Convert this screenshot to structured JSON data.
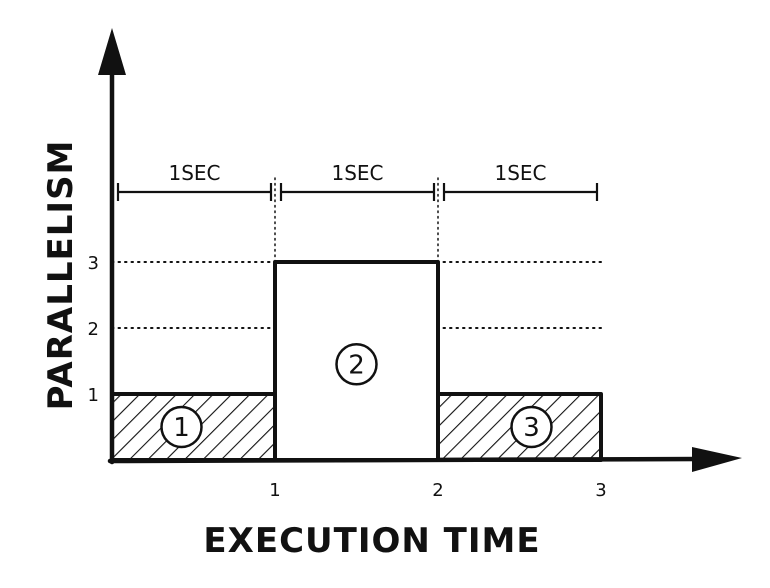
{
  "chart_data": {
    "type": "bar",
    "xlabel": "EXECUTION TIME",
    "ylabel": "PARALLELISM",
    "x_ticks": [
      "1",
      "2",
      "3"
    ],
    "y_ticks": [
      "1",
      "2",
      "3"
    ],
    "xlim": [
      0,
      3
    ],
    "ylim": [
      0,
      3
    ],
    "grid": "dotted at y=2 and y=3",
    "segments": [
      {
        "label": "1",
        "start": 0,
        "end": 1,
        "value": 1,
        "fill": "hatched"
      },
      {
        "label": "2",
        "start": 1,
        "end": 2,
        "value": 3,
        "fill": "blank"
      },
      {
        "label": "3",
        "start": 2,
        "end": 3,
        "value": 1,
        "fill": "hatched"
      }
    ],
    "durations": [
      "1SEC",
      "1SEC",
      "1SEC"
    ]
  }
}
